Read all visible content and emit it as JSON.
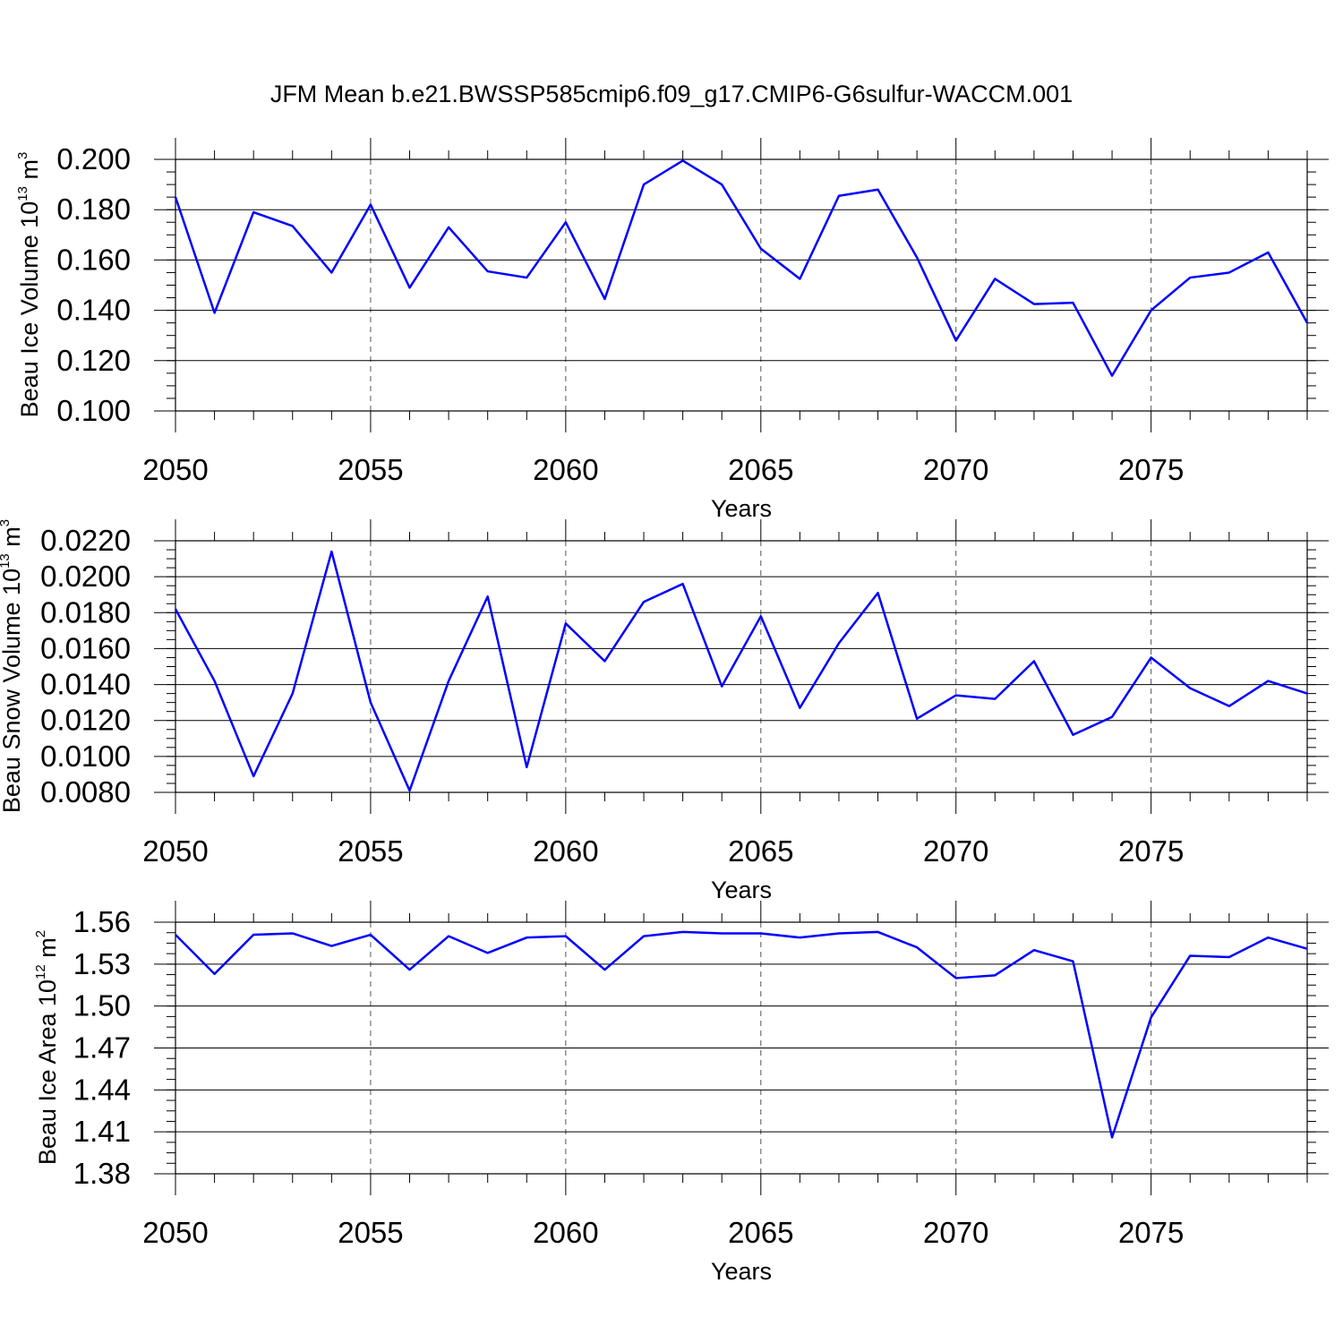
{
  "title": "JFM Mean b.e21.BWSSP585cmip6.f09_g17.CMIP6-G6sulfur-WACCM.001",
  "colors": {
    "series": "#0000ff",
    "axis": "#000000",
    "grid": "#555555"
  },
  "chart_data": [
    {
      "type": "line",
      "xlabel": "Years",
      "ylabel": {
        "prefix": "Beau Ice Volume 10",
        "exp": "13",
        "unit": " m",
        "unit_exp": "3"
      },
      "xlim": [
        2050,
        2079
      ],
      "ylim": [
        0.1,
        0.2
      ],
      "grid": "vertical dashed at major x ticks",
      "xticks": [
        2050,
        2055,
        2060,
        2065,
        2070,
        2075
      ],
      "xtick_labels": [
        "2050",
        "2055",
        "2060",
        "2065",
        "2070",
        "2075"
      ],
      "yticks": [
        0.1,
        0.12,
        0.14,
        0.16,
        0.18,
        0.2
      ],
      "ytick_labels": [
        "0.100",
        "0.120",
        "0.140",
        "0.160",
        "0.180",
        "0.200"
      ],
      "yminor_step": 0.005,
      "series": [
        {
          "name": "Beau Ice Volume",
          "x": [
            2050,
            2051,
            2052,
            2053,
            2054,
            2055,
            2056,
            2057,
            2058,
            2059,
            2060,
            2061,
            2062,
            2063,
            2064,
            2065,
            2066,
            2067,
            2068,
            2069,
            2070,
            2071,
            2072,
            2073,
            2074,
            2075,
            2076,
            2077,
            2078,
            2079
          ],
          "values": [
            0.185,
            0.139,
            0.179,
            0.1735,
            0.155,
            0.182,
            0.149,
            0.173,
            0.1555,
            0.153,
            0.175,
            0.1445,
            0.19,
            0.1995,
            0.19,
            0.1645,
            0.1525,
            0.1855,
            0.188,
            0.161,
            0.128,
            0.1525,
            0.1425,
            0.143,
            0.114,
            0.14,
            0.153,
            0.155,
            0.163,
            0.135
          ]
        }
      ]
    },
    {
      "type": "line",
      "xlabel": "Years",
      "ylabel": {
        "prefix": "Beau Snow Volume 10",
        "exp": "13",
        "unit": " m",
        "unit_exp": "3"
      },
      "xlim": [
        2050,
        2079
      ],
      "ylim": [
        0.008,
        0.022
      ],
      "grid": "vertical dashed at major x ticks",
      "xticks": [
        2050,
        2055,
        2060,
        2065,
        2070,
        2075
      ],
      "xtick_labels": [
        "2050",
        "2055",
        "2060",
        "2065",
        "2070",
        "2075"
      ],
      "yticks": [
        0.008,
        0.01,
        0.012,
        0.014,
        0.016,
        0.018,
        0.02,
        0.022
      ],
      "ytick_labels": [
        "0.0080",
        "0.0100",
        "0.0120",
        "0.0140",
        "0.0160",
        "0.0180",
        "0.0200",
        "0.0220"
      ],
      "yminor_step": 0.0005,
      "series": [
        {
          "name": "Beau Snow Volume",
          "x": [
            2050,
            2051,
            2052,
            2053,
            2054,
            2055,
            2056,
            2057,
            2058,
            2059,
            2060,
            2061,
            2062,
            2063,
            2064,
            2065,
            2066,
            2067,
            2068,
            2069,
            2070,
            2071,
            2072,
            2073,
            2074,
            2075,
            2076,
            2077,
            2078,
            2079
          ],
          "values": [
            0.0182,
            0.0142,
            0.0089,
            0.0135,
            0.0214,
            0.013,
            0.0081,
            0.0142,
            0.0189,
            0.0094,
            0.0174,
            0.0153,
            0.0186,
            0.0196,
            0.0139,
            0.0178,
            0.0127,
            0.0163,
            0.0191,
            0.0121,
            0.0134,
            0.0132,
            0.0153,
            0.0112,
            0.0122,
            0.0155,
            0.0138,
            0.0128,
            0.0142,
            0.0135
          ]
        }
      ]
    },
    {
      "type": "line",
      "xlabel": "Years",
      "ylabel": {
        "prefix": "Beau Ice Area 10",
        "exp": "12",
        "unit": " m",
        "unit_exp": "2"
      },
      "xlim": [
        2050,
        2079
      ],
      "ylim": [
        1.38,
        1.56
      ],
      "grid": "vertical dashed at major x ticks",
      "xticks": [
        2050,
        2055,
        2060,
        2065,
        2070,
        2075
      ],
      "xtick_labels": [
        "2050",
        "2055",
        "2060",
        "2065",
        "2070",
        "2075"
      ],
      "yticks": [
        1.38,
        1.41,
        1.44,
        1.47,
        1.5,
        1.53,
        1.56
      ],
      "ytick_labels": [
        "1.38",
        "1.41",
        "1.44",
        "1.47",
        "1.50",
        "1.53",
        "1.56"
      ],
      "yminor_step": 0.0075,
      "series": [
        {
          "name": "Beau Ice Area",
          "x": [
            2050,
            2051,
            2052,
            2053,
            2054,
            2055,
            2056,
            2057,
            2058,
            2059,
            2060,
            2061,
            2062,
            2063,
            2064,
            2065,
            2066,
            2067,
            2068,
            2069,
            2070,
            2071,
            2072,
            2073,
            2074,
            2075,
            2076,
            2077,
            2078,
            2079
          ],
          "values": [
            1.551,
            1.523,
            1.551,
            1.552,
            1.543,
            1.551,
            1.526,
            1.55,
            1.538,
            1.549,
            1.55,
            1.526,
            1.55,
            1.553,
            1.552,
            1.552,
            1.549,
            1.552,
            1.553,
            1.542,
            1.52,
            1.522,
            1.54,
            1.532,
            1.406,
            1.492,
            1.536,
            1.535,
            1.549,
            1.541
          ]
        }
      ]
    }
  ]
}
